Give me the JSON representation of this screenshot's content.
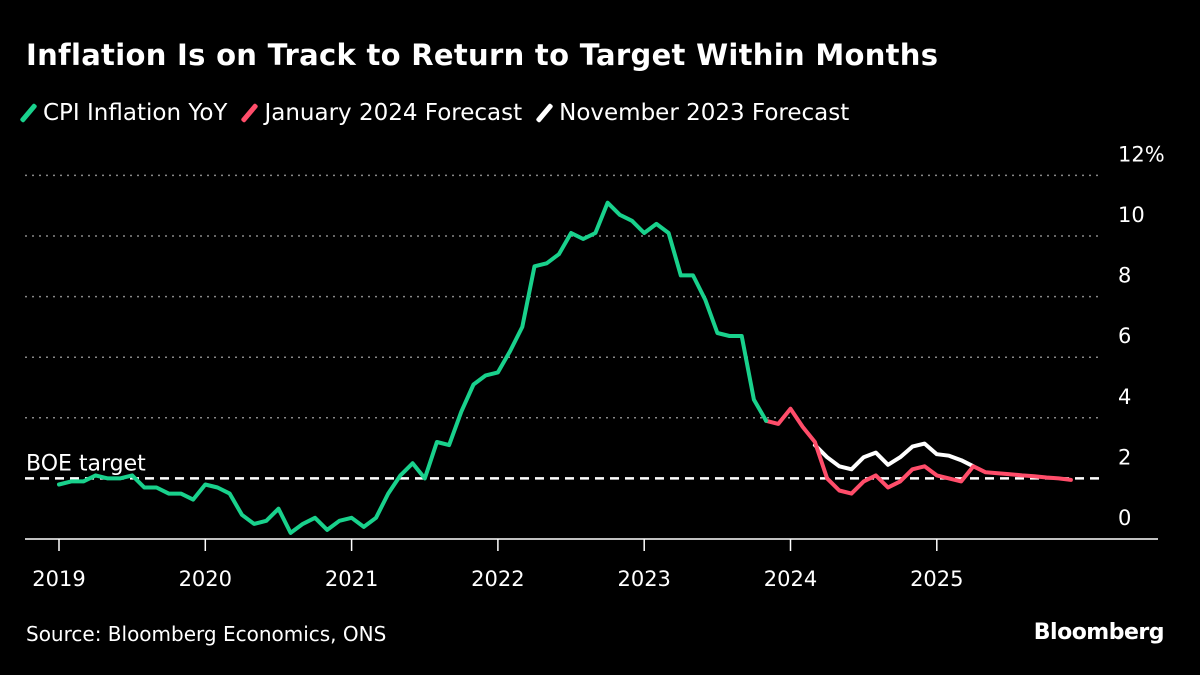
{
  "chart_data": {
    "type": "line",
    "title": "Inflation Is on Track to Return to Target Within Months",
    "x_unit": "month",
    "x_tick_labels": [
      "2019",
      "2020",
      "2021",
      "2022",
      "2023",
      "2024",
      "2025"
    ],
    "y_tick_labels": [
      "0",
      "2",
      "4",
      "6",
      "8",
      "10",
      "12%"
    ],
    "y_ticks": [
      0,
      2,
      4,
      6,
      8,
      10,
      12
    ],
    "ylim": [
      0,
      12
    ],
    "xlim": [
      "2019-01",
      "2025-12"
    ],
    "grid": "horizontal dotted",
    "legend_position": "top-left",
    "annotation": {
      "label": "BOE target",
      "value": 2
    },
    "series": [
      {
        "name": "CPI Inflation YoY",
        "color": "#19d18c",
        "start": "2019-01",
        "values": [
          1.8,
          1.9,
          1.9,
          2.1,
          2.0,
          2.0,
          2.1,
          1.7,
          1.7,
          1.5,
          1.5,
          1.3,
          1.8,
          1.7,
          1.5,
          0.8,
          0.5,
          0.6,
          1.0,
          0.2,
          0.5,
          0.7,
          0.3,
          0.6,
          0.7,
          0.4,
          0.7,
          1.5,
          2.1,
          2.5,
          2.0,
          3.2,
          3.1,
          4.2,
          5.1,
          5.4,
          5.5,
          6.2,
          7.0,
          9.0,
          9.1,
          9.4,
          10.1,
          9.9,
          10.1,
          11.1,
          10.7,
          10.5,
          10.1,
          10.4,
          10.1,
          8.7,
          8.7,
          7.9,
          6.8,
          6.7,
          6.7,
          4.6,
          3.9
        ]
      },
      {
        "name": "November 2023 Forecast",
        "color": "#ffffff",
        "start": "2024-03",
        "values": [
          3.1,
          2.7,
          2.4,
          2.3,
          2.7,
          2.85,
          2.45,
          2.7,
          3.05,
          3.15,
          2.8,
          2.75,
          2.6,
          2.4
        ]
      },
      {
        "name": "January 2024 Forecast",
        "color": "#ff4d6a",
        "start": "2023-11",
        "values": [
          3.9,
          3.8,
          4.3,
          3.7,
          3.2,
          2.0,
          1.6,
          1.5,
          1.9,
          2.1,
          1.7,
          1.9,
          2.3,
          2.4,
          2.1,
          2.0,
          1.9,
          2.4,
          2.2,
          2.17,
          2.14,
          2.1,
          2.07,
          2.03,
          2.0,
          1.95
        ]
      }
    ]
  },
  "legend": [
    {
      "label": "CPI Inflation YoY",
      "color": "#19d18c"
    },
    {
      "label": "January 2024 Forecast",
      "color": "#ff4d6a"
    },
    {
      "label": "November 2023 Forecast",
      "color": "#ffffff"
    }
  ],
  "source": "Source: Bloomberg Economics, ONS",
  "logo": "Bloomberg"
}
